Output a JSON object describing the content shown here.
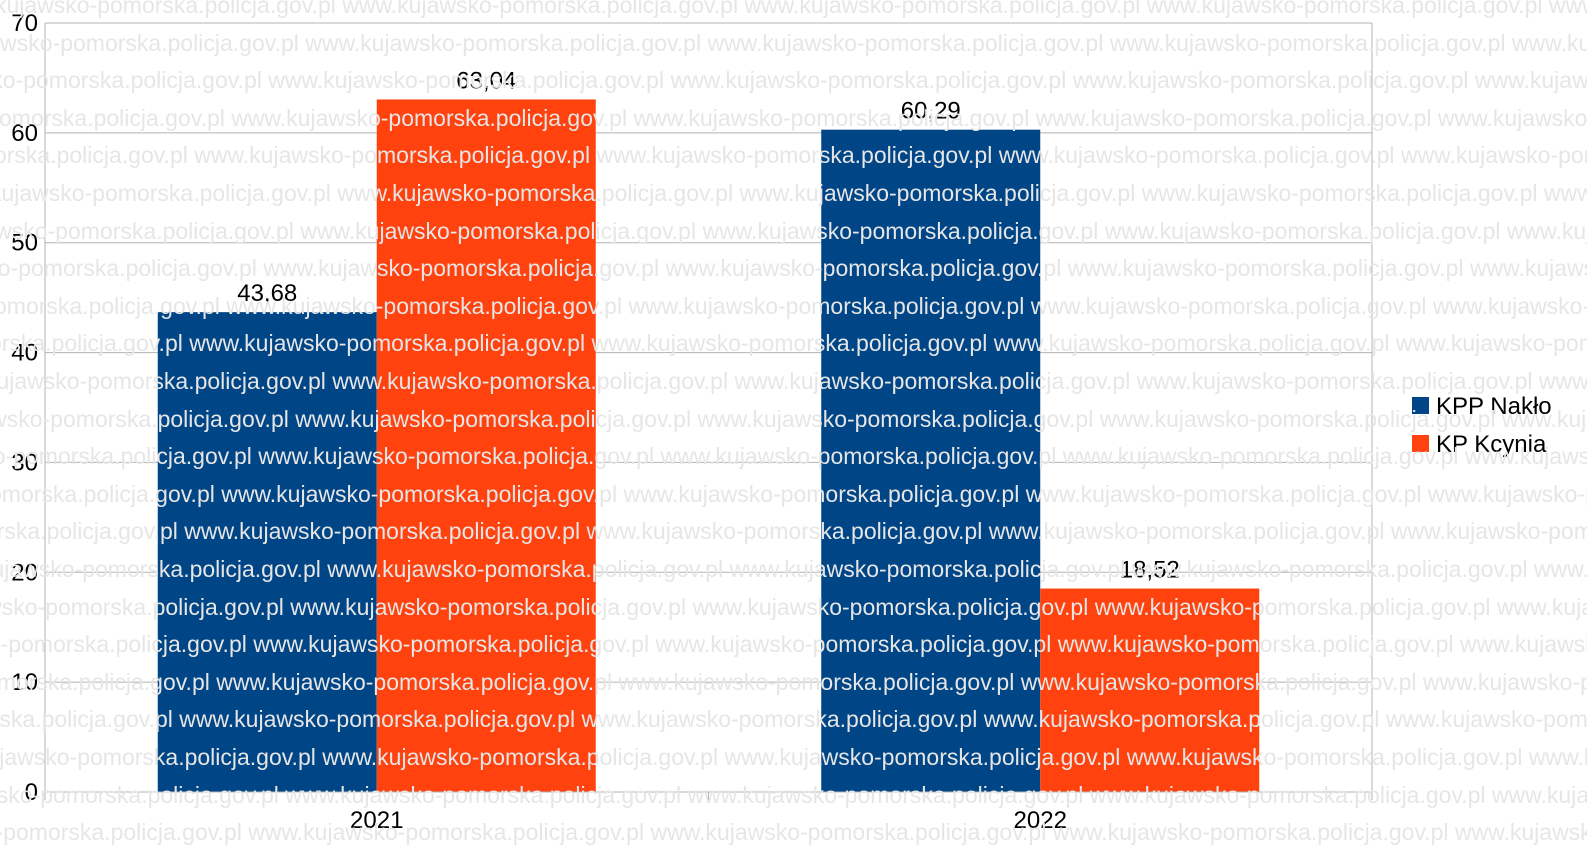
{
  "watermark": "www.kujawsko-pomorska.policja.gov.pl",
  "colors": {
    "grid": "#b3b3b3",
    "axis": "#b3b3b3",
    "text": "#000000"
  },
  "chart_data": {
    "type": "bar",
    "categories": [
      "2021",
      "2022"
    ],
    "series": [
      {
        "name": "KPP Nakło",
        "color": "#004586",
        "values": [
          43.68,
          60.29
        ],
        "labels": [
          "43,68",
          "60,29"
        ]
      },
      {
        "name": "KP Kcynia",
        "color": "#ff420e",
        "values": [
          63.04,
          18.52
        ],
        "labels": [
          "63,04",
          "18,52"
        ]
      }
    ],
    "ylim": [
      0,
      70
    ],
    "yticks": [
      0,
      10,
      20,
      30,
      40,
      50,
      60,
      70
    ],
    "grid": true,
    "legend": "right"
  }
}
